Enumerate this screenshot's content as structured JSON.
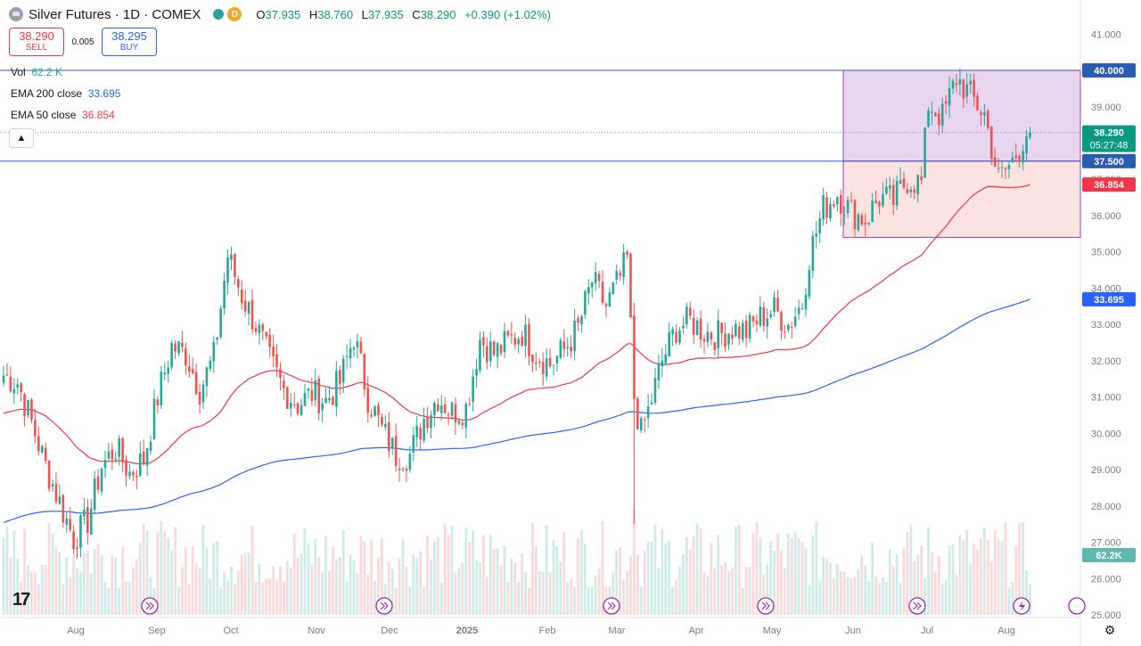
{
  "header": {
    "title": "Silver Futures · 1D · COMEX",
    "badge": "D",
    "ohlc": [
      {
        "key": "O",
        "value": "37.935"
      },
      {
        "key": "H",
        "value": "38.760"
      },
      {
        "key": "L",
        "value": "37.935"
      },
      {
        "key": "C",
        "value": "38.290"
      },
      {
        "key": "",
        "value": "+0.390 (+1.02%)"
      }
    ]
  },
  "trade": {
    "sell_price": "38.290",
    "sell_label": "SELL",
    "spread": "0.005",
    "buy_price": "38.295",
    "buy_label": "BUY"
  },
  "indicators": {
    "vol_label": "Vol",
    "vol_value": "62.2 K",
    "ema200_label": "EMA 200 close",
    "ema200_value": "33.695",
    "ema50_label": "EMA 50 close",
    "ema50_value": "36.854"
  },
  "colors": {
    "up": "#26a69a",
    "down": "#ef5350",
    "ema200": "#2962ff",
    "ema50": "#f23645",
    "rect_top_fill": "#e8d5f0",
    "rect_bottom_fill": "#fbe3e2",
    "rect_border": "#8e44ad",
    "hline": "#2a5db0"
  },
  "icons": [
    "tradingview-logo-icon",
    "fast-forward-icon",
    "flash-icon",
    "settings-icon",
    "chevron-up-icon"
  ],
  "chart_data": {
    "type": "candlestick",
    "y_axis_labels": [
      "41.000",
      "39.000",
      "38.000",
      "37.000",
      "36.000",
      "35.000",
      "34.000",
      "33.000",
      "32.000",
      "31.000",
      "30.000",
      "29.000",
      "28.000",
      "27.000",
      "26.000",
      "25.000"
    ],
    "ylim": [
      25,
      41.4
    ],
    "x_axis_labels": [
      "Aug",
      "Sep",
      "Oct",
      "Nov",
      "Dec",
      "2025",
      "Feb",
      "Mar",
      "Apr",
      "May",
      "Jun",
      "Jul",
      "Aug"
    ],
    "price_tags": [
      {
        "value": "40.000",
        "style": "line"
      },
      {
        "value": "38.290",
        "sub": "05:27:48",
        "style": "last"
      },
      {
        "value": "37.500",
        "style": "line"
      },
      {
        "value": "36.854",
        "style": "ema50"
      },
      {
        "value": "33.695",
        "style": "ema200"
      },
      {
        "value": "62.2K",
        "style": "volume"
      }
    ],
    "horizontal_lines": [
      40.0,
      37.5
    ],
    "rectangles": [
      {
        "from": "Jun",
        "to": "end",
        "top": 40.0,
        "bottom": 37.5
      },
      {
        "from": "Jun",
        "to": "end",
        "top": 37.5,
        "bottom": 35.4
      }
    ],
    "price_path": [
      [
        0,
        31.6
      ],
      [
        4,
        31.4
      ],
      [
        8,
        30.3
      ],
      [
        12,
        29.1
      ],
      [
        16,
        28.1
      ],
      [
        20,
        27.1
      ],
      [
        24,
        27.6
      ],
      [
        28,
        29.1
      ],
      [
        32,
        29.6
      ],
      [
        36,
        28.9
      ],
      [
        40,
        29.3
      ],
      [
        44,
        31.0
      ],
      [
        48,
        32.4
      ],
      [
        52,
        32.2
      ],
      [
        56,
        31.2
      ],
      [
        60,
        32.1
      ],
      [
        64,
        34.9
      ],
      [
        68,
        33.8
      ],
      [
        72,
        33.0
      ],
      [
        76,
        32.0
      ],
      [
        80,
        31.2
      ],
      [
        84,
        30.8
      ],
      [
        88,
        31.1
      ],
      [
        92,
        30.9
      ],
      [
        96,
        31.4
      ],
      [
        100,
        32.7
      ],
      [
        104,
        31.0
      ],
      [
        108,
        30.1
      ],
      [
        112,
        29.4
      ],
      [
        116,
        29.4
      ],
      [
        120,
        30.4
      ],
      [
        124,
        31.0
      ],
      [
        128,
        30.6
      ],
      [
        132,
        30.7
      ],
      [
        136,
        32.6
      ],
      [
        140,
        32.2
      ],
      [
        144,
        32.5
      ],
      [
        148,
        32.8
      ],
      [
        152,
        32.2
      ],
      [
        156,
        31.9
      ],
      [
        160,
        32.3
      ],
      [
        164,
        32.9
      ],
      [
        168,
        34.2
      ],
      [
        172,
        33.5
      ],
      [
        176,
        34.3
      ],
      [
        178,
        34.8
      ],
      [
        180,
        31.0
      ],
      [
        182,
        30.0
      ],
      [
        184,
        30.6
      ],
      [
        188,
        32.0
      ],
      [
        192,
        32.9
      ],
      [
        196,
        33.1
      ],
      [
        200,
        32.8
      ],
      [
        204,
        32.7
      ],
      [
        208,
        32.9
      ],
      [
        212,
        32.8
      ],
      [
        216,
        33.2
      ],
      [
        220,
        33.4
      ],
      [
        224,
        33.0
      ],
      [
        228,
        33.6
      ],
      [
        230,
        34.9
      ],
      [
        234,
        36.2
      ],
      [
        238,
        36.6
      ],
      [
        242,
        36.1
      ],
      [
        246,
        35.9
      ],
      [
        250,
        36.5
      ],
      [
        254,
        36.4
      ],
      [
        258,
        37.0
      ],
      [
        262,
        36.9
      ],
      [
        264,
        39.1
      ],
      [
        268,
        38.7
      ],
      [
        272,
        39.8
      ],
      [
        276,
        39.3
      ],
      [
        280,
        38.8
      ],
      [
        284,
        37.0
      ],
      [
        288,
        37.5
      ],
      [
        292,
        38.3
      ]
    ],
    "volume_label": "62.2K",
    "ema50_last": 36.854,
    "ema200_last": 33.695,
    "last_close": 38.29
  }
}
